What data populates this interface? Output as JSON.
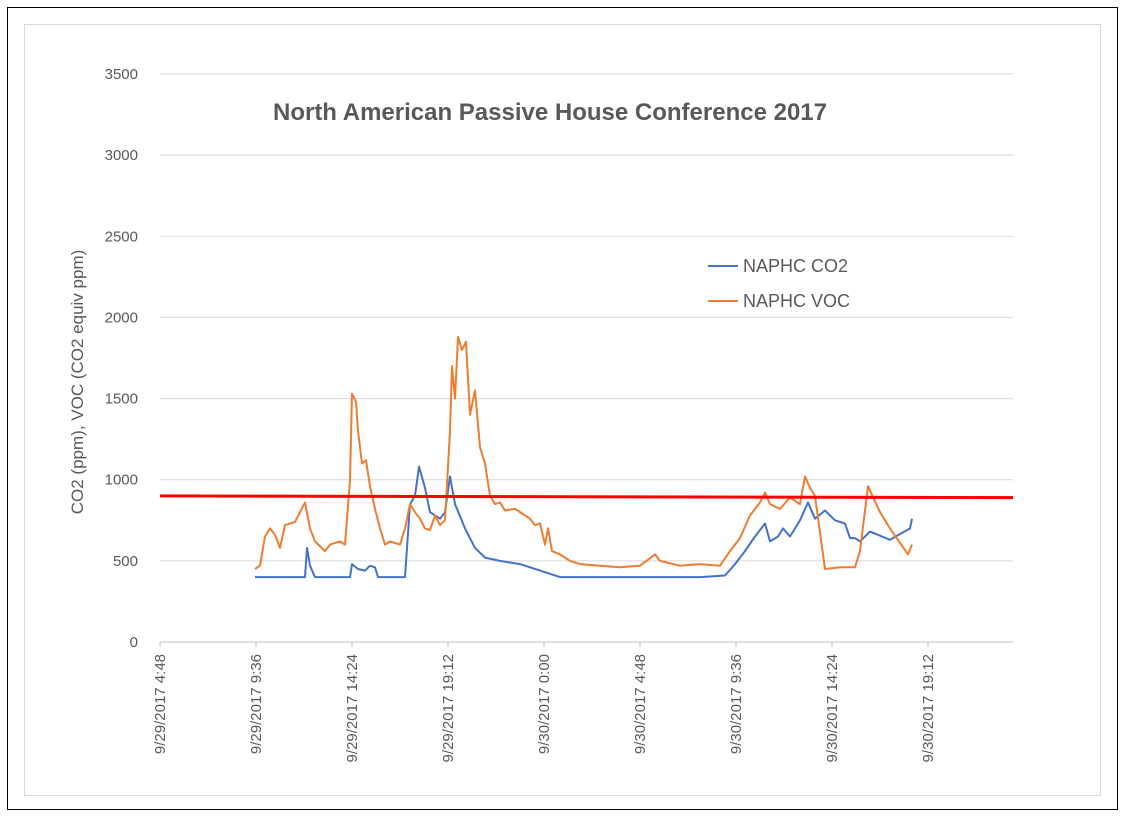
{
  "chart_data": {
    "type": "line",
    "title": "North American Passive House Conference 2017",
    "ylabel": "CO2 (ppm), VOC (CO2 equiv ppm)",
    "xlim": [
      "2017-09-29T04:48",
      "2017-09-30T23:27"
    ],
    "xticks": [
      {
        "value": "2017-09-29T04:48",
        "label": "9/29/2017 4:48"
      },
      {
        "value": "2017-09-29T09:36",
        "label": "9/29/2017 9:36"
      },
      {
        "value": "2017-09-29T14:24",
        "label": "9/29/2017 14:24"
      },
      {
        "value": "2017-09-29T19:12",
        "label": "9/29/2017 19:12"
      },
      {
        "value": "2017-09-30T00:00",
        "label": "9/30/2017 0:00"
      },
      {
        "value": "2017-09-30T04:48",
        "label": "9/30/2017 4:48"
      },
      {
        "value": "2017-09-30T09:36",
        "label": "9/30/2017 9:36"
      },
      {
        "value": "2017-09-30T14:24",
        "label": "9/30/2017 14:24"
      },
      {
        "value": "2017-09-30T19:12",
        "label": "9/30/2017 19:12"
      }
    ],
    "ylim": [
      0,
      3500
    ],
    "yticks": [
      0,
      500,
      1000,
      1500,
      2000,
      2500,
      3000,
      3500
    ],
    "grid": true,
    "legend": "right",
    "series": [
      {
        "name": "NAPHC CO2",
        "color": "#4472c4",
        "x": [
          "2017-09-29T09:33",
          "2017-09-29T12:03",
          "2017-09-29T12:09",
          "2017-09-29T12:18",
          "2017-09-29T12:33",
          "2017-09-29T14:18",
          "2017-09-29T14:24",
          "2017-09-29T14:42",
          "2017-09-29T15:03",
          "2017-09-29T15:18",
          "2017-09-29T15:33",
          "2017-09-29T15:42",
          "2017-09-29T16:33",
          "2017-09-29T17:03",
          "2017-09-29T17:18",
          "2017-09-29T17:33",
          "2017-09-29T17:45",
          "2017-09-29T18:03",
          "2017-09-29T18:18",
          "2017-09-29T18:33",
          "2017-09-29T18:48",
          "2017-09-29T19:03",
          "2017-09-29T19:18",
          "2017-09-29T19:33",
          "2017-09-29T20:03",
          "2017-09-29T20:33",
          "2017-09-29T21:03",
          "2017-09-29T21:48",
          "2017-09-29T22:48",
          "2017-09-29T23:48",
          "2017-09-30T00:48",
          "2017-09-30T02:48",
          "2017-09-30T05:18",
          "2017-09-30T07:48",
          "2017-09-30T09:03",
          "2017-09-30T09:33",
          "2017-09-30T10:03",
          "2017-09-30T10:33",
          "2017-09-30T11:03",
          "2017-09-30T11:18",
          "2017-09-30T11:42",
          "2017-09-30T11:57",
          "2017-09-30T12:18",
          "2017-09-30T12:48",
          "2017-09-30T13:12",
          "2017-09-30T13:33",
          "2017-09-30T14:03",
          "2017-09-30T14:33",
          "2017-09-30T15:03",
          "2017-09-30T15:18",
          "2017-09-30T15:33",
          "2017-09-30T15:48",
          "2017-09-30T16:18",
          "2017-09-30T17:18",
          "2017-09-30T18:18",
          "2017-09-30T18:24"
        ],
        "values": [
          400,
          400,
          580,
          470,
          400,
          400,
          480,
          450,
          440,
          470,
          460,
          400,
          400,
          400,
          850,
          900,
          1080,
          950,
          800,
          780,
          760,
          800,
          1020,
          850,
          700,
          580,
          520,
          500,
          480,
          440,
          400,
          400,
          400,
          400,
          410,
          480,
          560,
          650,
          730,
          620,
          650,
          700,
          650,
          750,
          860,
          760,
          810,
          750,
          730,
          640,
          640,
          620,
          680,
          630,
          700,
          760
        ]
      },
      {
        "name": "NAPHC VOC",
        "color": "#ed7d31",
        "x": [
          "2017-09-29T09:33",
          "2017-09-29T09:48",
          "2017-09-29T10:03",
          "2017-09-29T10:18",
          "2017-09-29T10:33",
          "2017-09-29T10:48",
          "2017-09-29T11:03",
          "2017-09-29T11:33",
          "2017-09-29T12:03",
          "2017-09-29T12:18",
          "2017-09-29T12:33",
          "2017-09-29T13:03",
          "2017-09-29T13:18",
          "2017-09-29T13:48",
          "2017-09-29T14:03",
          "2017-09-29T14:18",
          "2017-09-29T14:24",
          "2017-09-29T14:36",
          "2017-09-29T14:42",
          "2017-09-29T14:54",
          "2017-09-29T15:06",
          "2017-09-29T15:18",
          "2017-09-29T15:33",
          "2017-09-29T15:48",
          "2017-09-29T16:03",
          "2017-09-29T16:18",
          "2017-09-29T16:33",
          "2017-09-29T16:48",
          "2017-09-29T17:03",
          "2017-09-29T17:18",
          "2017-09-29T17:33",
          "2017-09-29T17:48",
          "2017-09-29T18:03",
          "2017-09-29T18:18",
          "2017-09-29T18:33",
          "2017-09-29T18:48",
          "2017-09-29T19:03",
          "2017-09-29T19:18",
          "2017-09-29T19:24",
          "2017-09-29T19:33",
          "2017-09-29T19:42",
          "2017-09-29T19:54",
          "2017-09-29T20:06",
          "2017-09-29T20:18",
          "2017-09-29T20:33",
          "2017-09-29T20:48",
          "2017-09-29T21:03",
          "2017-09-29T21:18",
          "2017-09-29T21:33",
          "2017-09-29T21:48",
          "2017-09-29T22:03",
          "2017-09-29T22:33",
          "2017-09-29T23:03",
          "2017-09-29T23:18",
          "2017-09-29T23:33",
          "2017-09-29T23:48",
          "2017-09-30T00:03",
          "2017-09-30T00:12",
          "2017-09-30T00:24",
          "2017-09-30T00:48",
          "2017-09-30T01:18",
          "2017-09-30T01:48",
          "2017-09-30T02:48",
          "2017-09-30T03:48",
          "2017-09-30T04:48",
          "2017-09-30T05:33",
          "2017-09-30T05:48",
          "2017-09-30T06:48",
          "2017-09-30T07:48",
          "2017-09-30T08:48",
          "2017-09-30T09:18",
          "2017-09-30T09:48",
          "2017-09-30T10:18",
          "2017-09-30T10:48",
          "2017-09-30T11:03",
          "2017-09-30T11:18",
          "2017-09-30T11:48",
          "2017-09-30T12:18",
          "2017-09-30T12:48",
          "2017-09-30T13:03",
          "2017-09-30T13:18",
          "2017-09-30T13:33",
          "2017-09-30T14:03",
          "2017-09-30T14:48",
          "2017-09-30T15:33",
          "2017-09-30T15:48",
          "2017-09-30T16:12",
          "2017-09-30T16:48",
          "2017-09-30T17:18",
          "2017-09-30T18:12",
          "2017-09-30T18:24"
        ],
        "values": [
          450,
          470,
          650,
          700,
          660,
          580,
          720,
          740,
          860,
          700,
          620,
          560,
          600,
          620,
          600,
          1000,
          1530,
          1480,
          1300,
          1100,
          1120,
          960,
          820,
          700,
          600,
          620,
          610,
          600,
          700,
          850,
          800,
          760,
          700,
          690,
          780,
          720,
          750,
          1300,
          1700,
          1500,
          1880,
          1800,
          1850,
          1400,
          1550,
          1200,
          1100,
          900,
          850,
          860,
          810,
          820,
          780,
          760,
          720,
          730,
          600,
          700,
          560,
          540,
          500,
          480,
          470,
          460,
          470,
          540,
          500,
          470,
          480,
          470,
          560,
          640,
          780,
          860,
          920,
          850,
          820,
          890,
          850,
          1020,
          950,
          900,
          450,
          460,
          460,
          560,
          960,
          800,
          700,
          540,
          600
        ]
      },
      {
        "color": "#ff0000",
        "x": [
          "2017-09-29T04:48",
          "2017-09-30T23:27"
        ],
        "values": [
          900,
          890
        ]
      }
    ]
  }
}
